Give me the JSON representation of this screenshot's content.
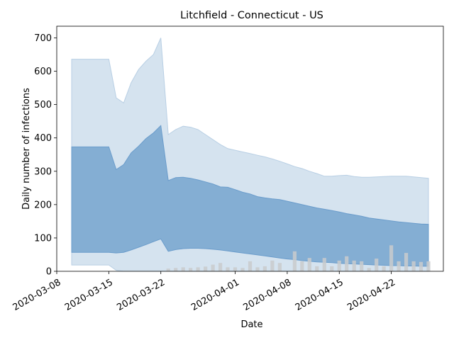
{
  "chart_data": {
    "type": "area",
    "title": "Litchfield - Connecticut - US",
    "xlabel": "Date",
    "ylabel": "Daily number of infections",
    "ylim": [
      0,
      735
    ],
    "xlim": [
      "2020-03-08",
      "2020-04-29"
    ],
    "x_ticks": [
      "2020-03-08",
      "2020-03-15",
      "2020-03-22",
      "2020-04-01",
      "2020-04-08",
      "2020-04-15",
      "2020-04-22"
    ],
    "y_ticks": [
      0,
      100,
      200,
      300,
      400,
      500,
      600,
      700
    ],
    "grid": false,
    "colors": {
      "outer_band": "#d5e3ef",
      "outer_edge": "#b8cfe4",
      "inner_band": "#84aed3",
      "inner_edge": "#6a9ccb",
      "bars": "#c9cbcd"
    },
    "x": [
      "2020-03-10",
      "2020-03-11",
      "2020-03-12",
      "2020-03-13",
      "2020-03-14",
      "2020-03-15",
      "2020-03-16",
      "2020-03-17",
      "2020-03-18",
      "2020-03-19",
      "2020-03-20",
      "2020-03-21",
      "2020-03-22",
      "2020-03-23",
      "2020-03-24",
      "2020-03-25",
      "2020-03-26",
      "2020-03-27",
      "2020-03-28",
      "2020-03-29",
      "2020-03-30",
      "2020-03-31",
      "2020-04-01",
      "2020-04-02",
      "2020-04-03",
      "2020-04-04",
      "2020-04-05",
      "2020-04-06",
      "2020-04-07",
      "2020-04-08",
      "2020-04-09",
      "2020-04-10",
      "2020-04-11",
      "2020-04-12",
      "2020-04-13",
      "2020-04-14",
      "2020-04-15",
      "2020-04-16",
      "2020-04-17",
      "2020-04-18",
      "2020-04-19",
      "2020-04-20",
      "2020-04-21",
      "2020-04-22",
      "2020-04-23",
      "2020-04-24",
      "2020-04-25",
      "2020-04-26",
      "2020-04-27"
    ],
    "series": [
      {
        "role": "outer_upper",
        "values": [
          636,
          636,
          636,
          636,
          636,
          636,
          520,
          505,
          565,
          605,
          630,
          650,
          700,
          410,
          425,
          435,
          432,
          425,
          410,
          395,
          380,
          368,
          363,
          358,
          353,
          348,
          343,
          337,
          330,
          322,
          314,
          308,
          300,
          293,
          285,
          285,
          287,
          288,
          284,
          282,
          282,
          283,
          284,
          285,
          285,
          285,
          283,
          281,
          279
        ]
      },
      {
        "role": "inner_upper",
        "values": [
          373,
          373,
          373,
          373,
          373,
          373,
          305,
          320,
          355,
          375,
          398,
          415,
          437,
          272,
          281,
          282,
          279,
          274,
          268,
          262,
          253,
          252,
          245,
          237,
          232,
          224,
          220,
          217,
          215,
          210,
          205,
          200,
          195,
          190,
          186,
          182,
          178,
          173,
          169,
          165,
          160,
          157,
          154,
          151,
          148,
          146,
          144,
          142,
          141
        ]
      },
      {
        "role": "inner_lower",
        "values": [
          57,
          57,
          57,
          57,
          57,
          57,
          55,
          57,
          64,
          72,
          80,
          89,
          97,
          60,
          65,
          68,
          69,
          69,
          68,
          66,
          64,
          61,
          58,
          55,
          52,
          49,
          46,
          43,
          40,
          37,
          35,
          32,
          30,
          28,
          27,
          26,
          24,
          23,
          22,
          21,
          20,
          19,
          18,
          17,
          17,
          16,
          16,
          15,
          15
        ]
      },
      {
        "role": "outer_lower",
        "values": [
          19,
          19,
          19,
          19,
          19,
          19,
          3,
          0,
          0,
          0,
          0,
          0,
          0,
          0,
          0,
          0,
          0,
          0,
          0,
          0,
          0,
          0,
          0,
          0,
          0,
          0,
          0,
          0,
          0,
          0,
          0,
          0,
          0,
          0,
          0,
          0,
          0,
          0,
          0,
          0,
          0,
          0,
          0,
          0,
          0,
          0,
          0,
          0,
          0
        ]
      }
    ],
    "bars": {
      "x": [
        "2020-03-23",
        "2020-03-24",
        "2020-03-25",
        "2020-03-26",
        "2020-03-27",
        "2020-03-28",
        "2020-03-29",
        "2020-03-30",
        "2020-03-31",
        "2020-04-01",
        "2020-04-02",
        "2020-04-03",
        "2020-04-04",
        "2020-04-05",
        "2020-04-06",
        "2020-04-07",
        "2020-04-08",
        "2020-04-09",
        "2020-04-10",
        "2020-04-11",
        "2020-04-12",
        "2020-04-13",
        "2020-04-14",
        "2020-04-15",
        "2020-04-16",
        "2020-04-17",
        "2020-04-18",
        "2020-04-19",
        "2020-04-20",
        "2020-04-21",
        "2020-04-22",
        "2020-04-23",
        "2020-04-24",
        "2020-04-25",
        "2020-04-26",
        "2020-04-27"
      ],
      "values": [
        8,
        10,
        12,
        10,
        12,
        14,
        20,
        25,
        12,
        12,
        10,
        30,
        12,
        15,
        32,
        25,
        0,
        60,
        30,
        40,
        15,
        40,
        15,
        32,
        45,
        32,
        30,
        10,
        38,
        15,
        78,
        30,
        55,
        30,
        28,
        30
      ]
    }
  }
}
